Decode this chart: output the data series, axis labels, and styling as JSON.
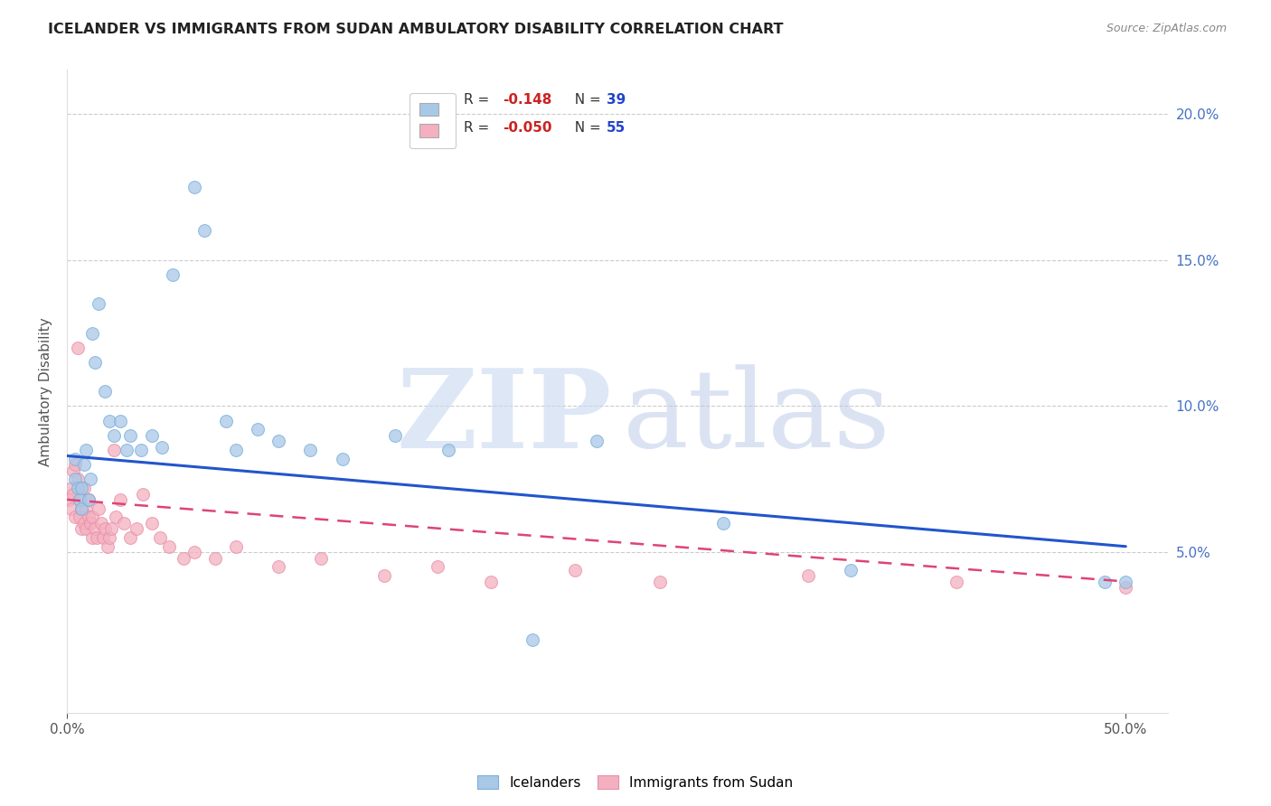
{
  "title": "ICELANDER VS IMMIGRANTS FROM SUDAN AMBULATORY DISABILITY CORRELATION CHART",
  "source": "Source: ZipAtlas.com",
  "ylabel": "Ambulatory Disability",
  "xlim": [
    0.0,
    0.52
  ],
  "ylim": [
    -0.005,
    0.215
  ],
  "yticks": [
    0.05,
    0.1,
    0.15,
    0.2
  ],
  "ytick_labels": [
    "5.0%",
    "10.0%",
    "15.0%",
    "20.0%"
  ],
  "xticks": [
    0.0,
    0.5
  ],
  "xtick_labels": [
    "0.0%",
    "50.0%"
  ],
  "blue_color": "#a8c8e8",
  "pink_color": "#f4b0c0",
  "blue_line_color": "#2255cc",
  "pink_line_color": "#dd4477",
  "blue_scatter_edge": "#7ab0d8",
  "pink_scatter_edge": "#e890a8",
  "watermark_zip_color": "#c8d8f0",
  "watermark_atlas_color": "#b8c8e8",
  "icelanders_x": [
    0.004,
    0.004,
    0.005,
    0.006,
    0.007,
    0.007,
    0.008,
    0.009,
    0.01,
    0.011,
    0.012,
    0.013,
    0.015,
    0.018,
    0.02,
    0.022,
    0.025,
    0.028,
    0.03,
    0.035,
    0.04,
    0.045,
    0.05,
    0.06,
    0.065,
    0.075,
    0.08,
    0.09,
    0.1,
    0.115,
    0.13,
    0.155,
    0.18,
    0.25,
    0.31,
    0.37,
    0.49,
    0.5,
    0.22
  ],
  "icelanders_y": [
    0.082,
    0.075,
    0.072,
    0.068,
    0.065,
    0.072,
    0.08,
    0.085,
    0.068,
    0.075,
    0.125,
    0.115,
    0.135,
    0.105,
    0.095,
    0.09,
    0.095,
    0.085,
    0.09,
    0.085,
    0.09,
    0.086,
    0.145,
    0.175,
    0.16,
    0.095,
    0.085,
    0.092,
    0.088,
    0.085,
    0.082,
    0.09,
    0.085,
    0.088,
    0.06,
    0.044,
    0.04,
    0.04,
    0.02
  ],
  "sudan_x": [
    0.001,
    0.002,
    0.002,
    0.003,
    0.003,
    0.004,
    0.004,
    0.005,
    0.005,
    0.006,
    0.006,
    0.007,
    0.007,
    0.008,
    0.008,
    0.009,
    0.009,
    0.01,
    0.01,
    0.011,
    0.012,
    0.012,
    0.013,
    0.014,
    0.015,
    0.016,
    0.017,
    0.018,
    0.019,
    0.02,
    0.021,
    0.022,
    0.023,
    0.025,
    0.027,
    0.03,
    0.033,
    0.036,
    0.04,
    0.044,
    0.048,
    0.055,
    0.06,
    0.07,
    0.08,
    0.1,
    0.12,
    0.15,
    0.175,
    0.2,
    0.24,
    0.28,
    0.35,
    0.42,
    0.5
  ],
  "sudan_y": [
    0.068,
    0.072,
    0.065,
    0.078,
    0.07,
    0.08,
    0.062,
    0.12,
    0.075,
    0.068,
    0.062,
    0.065,
    0.058,
    0.072,
    0.06,
    0.065,
    0.058,
    0.062,
    0.068,
    0.06,
    0.055,
    0.062,
    0.058,
    0.055,
    0.065,
    0.06,
    0.055,
    0.058,
    0.052,
    0.055,
    0.058,
    0.085,
    0.062,
    0.068,
    0.06,
    0.055,
    0.058,
    0.07,
    0.06,
    0.055,
    0.052,
    0.048,
    0.05,
    0.048,
    0.052,
    0.045,
    0.048,
    0.042,
    0.045,
    0.04,
    0.044,
    0.04,
    0.042,
    0.04,
    0.038
  ],
  "blue_trend_start": 0.083,
  "blue_trend_end": 0.052,
  "pink_trend_start": 0.068,
  "pink_trend_end": 0.04,
  "pink_trend_x_start": 0.0,
  "pink_trend_x_end": 0.5
}
